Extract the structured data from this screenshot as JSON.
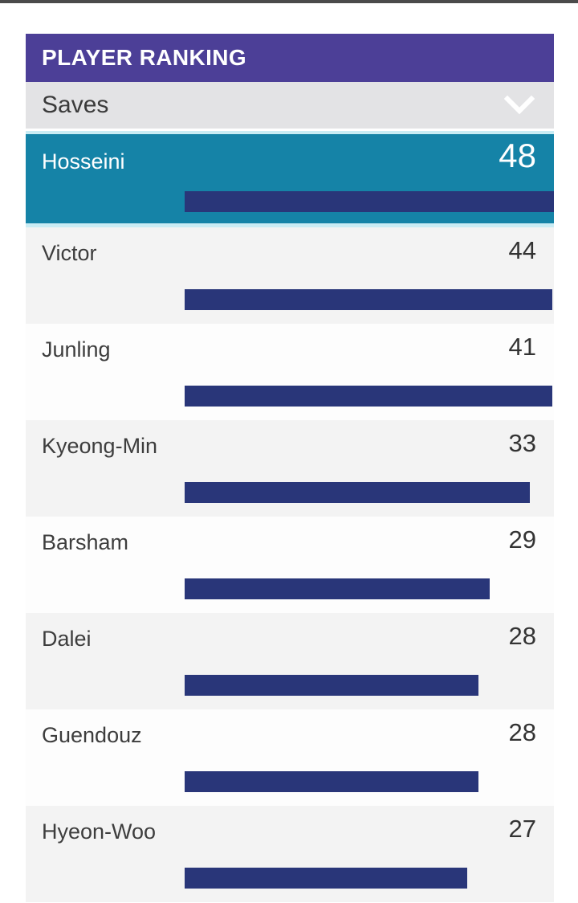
{
  "widget": {
    "title": "PLAYER RANKING",
    "stat_selector": {
      "selected": "Saves",
      "chevron_icon": "chevron-down"
    },
    "players": [
      {
        "name": "Hosseini",
        "value": "48",
        "bar_pct": 100,
        "highlight": true
      },
      {
        "name": "Victor",
        "value": "44",
        "bar_pct": 99.5,
        "highlight": false
      },
      {
        "name": "Junling",
        "value": "41",
        "bar_pct": 99.5,
        "highlight": false
      },
      {
        "name": "Kyeong-Min",
        "value": "33",
        "bar_pct": 93.5,
        "highlight": false
      },
      {
        "name": "Barsham",
        "value": "29",
        "bar_pct": 82.5,
        "highlight": false
      },
      {
        "name": "Dalei",
        "value": "28",
        "bar_pct": 79.5,
        "highlight": false
      },
      {
        "name": "Guendouz",
        "value": "28",
        "bar_pct": 79.5,
        "highlight": false
      },
      {
        "name": "Hyeon-Woo",
        "value": "27",
        "bar_pct": 76.5,
        "highlight": false
      }
    ]
  },
  "colors": {
    "header-bg": "#4c3f97",
    "selector-bg": "#e3e3e5",
    "highlight-bg": "#1583a7",
    "highlight-edge": "#c9ecf4",
    "bar-color": "#293679",
    "row-gray": "#f3f3f3",
    "row-white": "#fdfdfd",
    "top-strip": "#4b4b4b"
  },
  "chart_data": {
    "type": "bar",
    "orientation": "horizontal",
    "title": "PLAYER RANKING",
    "metric": "Saves",
    "categories": [
      "Hosseini",
      "Victor",
      "Junling",
      "Kyeong-Min",
      "Barsham",
      "Dalei",
      "Guendouz",
      "Hyeon-Woo"
    ],
    "values": [
      48,
      44,
      41,
      33,
      29,
      28,
      28,
      27
    ],
    "highlighted": "Hosseini",
    "value_labels_shown": true,
    "axis_shown": false
  }
}
